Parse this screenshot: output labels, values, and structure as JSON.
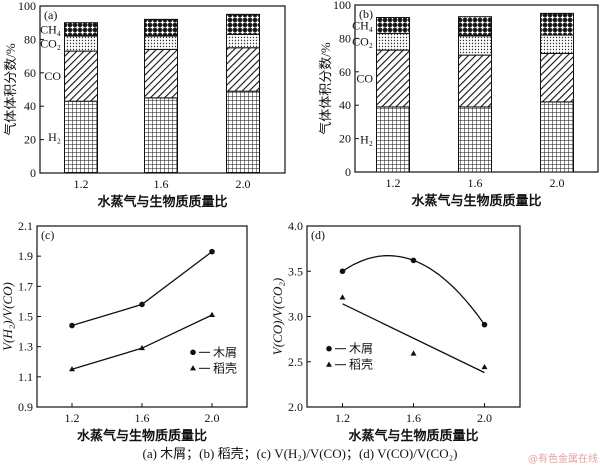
{
  "caption": "(a) 木屑；(b) 稻壳；(c) V(H₂)/V(CO)；(d) V(CO)/V(CO₂)",
  "watermark": "@有色金属在线",
  "chart_data": [
    {
      "type": "bar",
      "stacked": true,
      "panel": "(a)",
      "categories": [
        "1.2",
        "1.6",
        "2.0"
      ],
      "xlabel": "水蒸气与生物质质量比",
      "ylabel": "气体体积分数/%",
      "ylim": [
        0,
        100
      ],
      "yticks": [
        "0",
        "20",
        "40",
        "60",
        "80",
        "100"
      ],
      "series": [
        {
          "name": "H₂",
          "values": [
            43,
            45,
            49
          ]
        },
        {
          "name": "CO",
          "values": [
            30,
            29,
            26
          ]
        },
        {
          "name": "CO₂",
          "values": [
            9,
            8,
            8
          ]
        },
        {
          "name": "CH₄",
          "values": [
            8,
            10,
            12
          ]
        }
      ]
    },
    {
      "type": "bar",
      "stacked": true,
      "panel": "(b)",
      "categories": [
        "1.2",
        "1.6",
        "2.0"
      ],
      "xlabel": "水蒸气与生物质质量比",
      "ylabel": "气体体积分数/%",
      "ylim": [
        0,
        100
      ],
      "yticks": [
        "0",
        "20",
        "40",
        "60",
        "80",
        "100"
      ],
      "series": [
        {
          "name": "H₂",
          "values": [
            39,
            39,
            42
          ]
        },
        {
          "name": "CO",
          "values": [
            34,
            31,
            29
          ]
        },
        {
          "name": "CO₂",
          "values": [
            10,
            11.5,
            11
          ]
        },
        {
          "name": "CH₄",
          "values": [
            9.5,
            11.5,
            13
          ]
        }
      ]
    },
    {
      "type": "line",
      "panel": "(c)",
      "x": [
        1.2,
        1.6,
        2.0
      ],
      "xticks": [
        "1.2",
        "1.6",
        "2.0"
      ],
      "xlim": [
        1.0,
        2.2
      ],
      "xlabel": "水蒸气与生物质质量比",
      "ylabel": "V(H₂)/V(CO)",
      "ylim": [
        0.9,
        2.1
      ],
      "yticks": [
        "0.9",
        "1.1",
        "1.3",
        "1.5",
        "1.7",
        "1.9",
        "2.1"
      ],
      "series": [
        {
          "name": "木屑",
          "marker": "circle",
          "values": [
            1.44,
            1.58,
            1.93
          ]
        },
        {
          "name": "稻壳",
          "marker": "triangle",
          "values": [
            1.15,
            1.29,
            1.51
          ]
        }
      ],
      "legend": "bottom-right"
    },
    {
      "type": "scatter",
      "panel": "(d)",
      "x": [
        1.2,
        1.6,
        2.0
      ],
      "xticks": [
        "1.2",
        "1.6",
        "2.0"
      ],
      "xlim": [
        1.0,
        2.2
      ],
      "xlabel": "水蒸气与生物质质量比",
      "ylabel": "V(CO)/V(CO₂)",
      "ylim": [
        2.0,
        4.0
      ],
      "yticks": [
        "2.0",
        "2.5",
        "3.0",
        "3.5",
        "4.0"
      ],
      "series": [
        {
          "name": "木屑",
          "marker": "circle",
          "values": [
            3.5,
            3.62,
            2.91
          ],
          "fit": "quadratic"
        },
        {
          "name": "稻壳",
          "marker": "triangle",
          "values": [
            3.21,
            2.59,
            2.44
          ],
          "fit": "linear",
          "fit_ends": [
            3.14,
            2.38
          ]
        }
      ],
      "legend": "bottom-left"
    }
  ]
}
